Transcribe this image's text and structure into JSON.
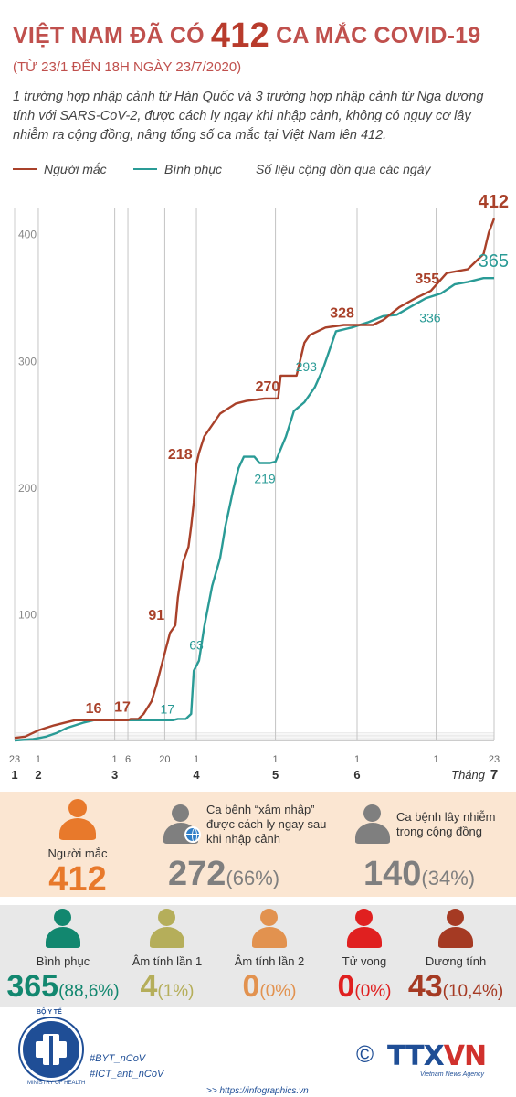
{
  "header": {
    "title_pre": "VIỆT NAM ĐÃ CÓ",
    "title_num": "412",
    "title_post": "CA MẮC COVID-19",
    "subtitle": "(TỪ 23/1 ĐẾN 18H NGÀY 23/7/2020)",
    "lead": "1 trường hợp nhập cảnh từ Hàn Quốc và 3 trường hợp nhập cảnh từ Nga dương tính với SARS-CoV-2, được cách ly ngay khi nhập cảnh, không có nguy cơ lây nhiễm ra cộng đồng, nâng tổng số ca mắc tại Việt Nam lên 412."
  },
  "legend": {
    "infected": "Người mắc",
    "recovered": "Bình phục",
    "note": "Số liệu cộng dồn qua các ngày"
  },
  "colors": {
    "infected": "#a9412a",
    "recovered": "#2a9b96",
    "title": "#c0504d",
    "panel1": "#fbe6d2",
    "panel2": "#e8e8e8",
    "orange": "#e8792b",
    "gray": "#7f7f7f",
    "green": "#12876f",
    "khaki": "#b5ae5a",
    "lightorange": "#e2924f",
    "red": "#e02020",
    "brown": "#a53a23"
  },
  "chart_data": {
    "type": "line",
    "x_unit": "day index from 23/1/2020",
    "ylim": [
      0,
      420
    ],
    "y_ticks": [
      100,
      200,
      300,
      400
    ],
    "day_ticks": [
      {
        "day": 0,
        "label": "23",
        "month": "1"
      },
      {
        "day": 9,
        "label": "1",
        "month": "2"
      },
      {
        "day": 38,
        "label": "1",
        "month": "3"
      },
      {
        "day": 43,
        "label": "6",
        "month": ""
      },
      {
        "day": 57,
        "label": "20",
        "month": ""
      },
      {
        "day": 69,
        "label": "1",
        "month": "4"
      },
      {
        "day": 99,
        "label": "1",
        "month": "5"
      },
      {
        "day": 130,
        "label": "1",
        "month": "6"
      },
      {
        "day": 160,
        "label": "1",
        "month": ""
      },
      {
        "day": 182,
        "label": "23",
        "month": "7"
      }
    ],
    "month_suffix": "Tháng",
    "series": [
      {
        "name": "Người mắc",
        "points": [
          [
            0,
            2
          ],
          [
            4,
            3
          ],
          [
            7,
            6
          ],
          [
            9,
            8
          ],
          [
            12,
            10
          ],
          [
            15,
            12
          ],
          [
            19,
            14
          ],
          [
            23,
            16
          ],
          [
            43,
            16
          ],
          [
            44,
            17
          ],
          [
            47,
            17
          ],
          [
            49,
            21
          ],
          [
            52,
            31
          ],
          [
            54,
            45
          ],
          [
            56,
            61
          ],
          [
            59,
            85
          ],
          [
            61,
            91
          ],
          [
            62,
            113
          ],
          [
            64,
            141
          ],
          [
            66,
            153
          ],
          [
            67,
            169
          ],
          [
            68,
            188
          ],
          [
            69,
            218
          ],
          [
            70,
            227
          ],
          [
            72,
            240
          ],
          [
            75,
            249
          ],
          [
            78,
            258
          ],
          [
            81,
            262
          ],
          [
            84,
            266
          ],
          [
            88,
            268
          ],
          [
            95,
            270
          ],
          [
            100,
            270
          ],
          [
            101,
            288
          ],
          [
            107,
            288
          ],
          [
            110,
            314
          ],
          [
            112,
            320
          ],
          [
            118,
            326
          ],
          [
            125,
            328
          ],
          [
            136,
            328
          ],
          [
            140,
            332
          ],
          [
            146,
            342
          ],
          [
            152,
            349
          ],
          [
            158,
            355
          ],
          [
            164,
            369
          ],
          [
            172,
            372
          ],
          [
            178,
            384
          ],
          [
            180,
            401
          ],
          [
            182,
            412
          ]
        ],
        "labels": [
          {
            "day": 30,
            "value": 16
          },
          {
            "day": 43,
            "value": 17
          },
          {
            "day": 58,
            "value": 91
          },
          {
            "day": 67,
            "value": 218
          },
          {
            "day": 96,
            "value": 270
          },
          {
            "day": 125,
            "value": 328
          },
          {
            "day": 158,
            "value": 355
          },
          {
            "day": 182,
            "value": 412
          }
        ]
      },
      {
        "name": "Bình phục",
        "points": [
          [
            0,
            0
          ],
          [
            7,
            1
          ],
          [
            12,
            3
          ],
          [
            16,
            6
          ],
          [
            20,
            10
          ],
          [
            26,
            14
          ],
          [
            30,
            16
          ],
          [
            40,
            16
          ],
          [
            44,
            16
          ],
          [
            60,
            16
          ],
          [
            62,
            17
          ],
          [
            65,
            17
          ],
          [
            67,
            21
          ],
          [
            68,
            55
          ],
          [
            70,
            63
          ],
          [
            72,
            90
          ],
          [
            75,
            122
          ],
          [
            78,
            144
          ],
          [
            80,
            169
          ],
          [
            83,
            198
          ],
          [
            85,
            215
          ],
          [
            87,
            224
          ],
          [
            91,
            224
          ],
          [
            93,
            219
          ],
          [
            97,
            219
          ],
          [
            99,
            220
          ],
          [
            103,
            240
          ],
          [
            106,
            260
          ],
          [
            110,
            267
          ],
          [
            114,
            279
          ],
          [
            117,
            293
          ],
          [
            122,
            323
          ],
          [
            128,
            326
          ],
          [
            134,
            330
          ],
          [
            140,
            335
          ],
          [
            145,
            336
          ],
          [
            150,
            342
          ],
          [
            156,
            349
          ],
          [
            162,
            353
          ],
          [
            167,
            360
          ],
          [
            172,
            362
          ],
          [
            178,
            365
          ],
          [
            182,
            365
          ]
        ],
        "labels": [
          {
            "day": 58,
            "value": 17
          },
          {
            "day": 69,
            "value": 63
          },
          {
            "day": 95,
            "value": 219
          },
          {
            "day": 119,
            "value": 293
          },
          {
            "day": 157,
            "value": 336
          },
          {
            "day": 182,
            "value": 365
          }
        ]
      }
    ]
  },
  "summary": {
    "infected_label": "Người mắc",
    "infected_value": "412",
    "imported_label": "Ca bệnh “xâm nhập” được cách ly ngay sau khi nhập cảnh",
    "imported_value": "272",
    "imported_pct": "(66%)",
    "community_label": "Ca bệnh lây nhiễm trong cộng đồng",
    "community_value": "140",
    "community_pct": "(34%)"
  },
  "outcomes": [
    {
      "label": "Bình phục",
      "value": "365",
      "pct": "(88,6%)",
      "color": "#12876f",
      "icon": "person-icon"
    },
    {
      "label": "Âm tính lần 1",
      "value": "4",
      "pct": "(1%)",
      "color": "#b5ae5a",
      "icon": "person-icon"
    },
    {
      "label": "Âm tính lần 2",
      "value": "0",
      "pct": "(0%)",
      "color": "#e2924f",
      "icon": "person-icon"
    },
    {
      "label": "Tử vong",
      "value": "0",
      "pct": "(0%)",
      "color": "#e02020",
      "icon": "person-icon"
    },
    {
      "label": "Dương tính",
      "value": "43",
      "pct": "(10,4%)",
      "color": "#a53a23",
      "icon": "person-icon"
    }
  ],
  "footer": {
    "moh_top": "BỘ Y TẾ",
    "moh_bottom": "MINISTRY OF HEALTH",
    "tag1": "#BYT_nCoV",
    "tag2": "#ICT_anti_nCoV",
    "copyright": "©",
    "ttx_a": "TTX",
    "ttx_b": "VN",
    "agency": "Vietnam News Agency",
    "site": ">> https://infographics.vn"
  }
}
